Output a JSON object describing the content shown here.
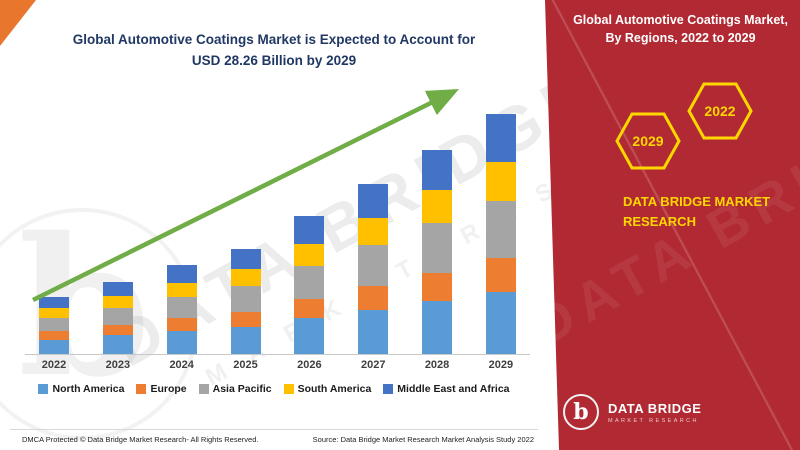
{
  "header": {
    "title_line1": "Global Automotive Coatings Market is Expected to Account for",
    "title_line2": "USD 28.26 Billion by 2029",
    "title_color": "#203864"
  },
  "side_panel": {
    "bg_color": "#B12A33",
    "title_line1": "Global Automotive Coatings Market,",
    "title_line2": "By Regions, 2022 to 2029",
    "hexagons": [
      {
        "label": "2029"
      },
      {
        "label": "2022"
      }
    ],
    "accent_yellow": "#FFD700",
    "brand_line1": "DATA BRIDGE MARKET",
    "brand_line2": "RESEARCH",
    "logo": {
      "letter": "b",
      "name": "DATA BRIDGE",
      "tagline": "MARKET RESEARCH"
    }
  },
  "chart_data": {
    "type": "bar",
    "stacked": true,
    "unit": "USD Billion",
    "title": "Global Automotive Coatings Market, By Regions, 2022 to 2029",
    "categories": [
      "2022",
      "2023",
      "2024",
      "2025",
      "2026",
      "2027",
      "2028",
      "2029"
    ],
    "series": [
      {
        "name": "North America",
        "color": "#5B9BD5",
        "values": [
          1.7,
          2.2,
          2.7,
          3.2,
          4.2,
          5.2,
          6.2,
          7.3
        ]
      },
      {
        "name": "Europe",
        "color": "#ED7D31",
        "values": [
          1.0,
          1.2,
          1.5,
          1.8,
          2.3,
          2.8,
          3.4,
          4.0
        ]
      },
      {
        "name": "Asia Pacific",
        "color": "#A5A5A5",
        "values": [
          1.6,
          2.0,
          2.5,
          3.0,
          3.9,
          4.8,
          5.8,
          6.8
        ]
      },
      {
        "name": "South America",
        "color": "#FFC000",
        "values": [
          1.1,
          1.4,
          1.7,
          2.0,
          2.6,
          3.2,
          3.9,
          4.6
        ]
      },
      {
        "name": "Middle East and Africa",
        "color": "#4472C4",
        "values": [
          1.3,
          1.7,
          2.1,
          2.4,
          3.3,
          4.0,
          4.8,
          5.6
        ]
      }
    ],
    "total_2029": 28.26,
    "trend_arrow_color": "#70AD47",
    "legend_position": "bottom",
    "axis": {
      "baseline_color": "#C8C8C8",
      "label_color": "#3F3F3F"
    }
  },
  "watermark": {
    "line1": "DATA BRIDGE",
    "line2": "MARKET RESEARCH",
    "glyph": "b"
  },
  "footer": {
    "left": "DMCA Protected © Data Bridge Market Research- All Rights Reserved.",
    "right": "Source: Data Bridge Market Research Market Analysis Study 2022"
  }
}
